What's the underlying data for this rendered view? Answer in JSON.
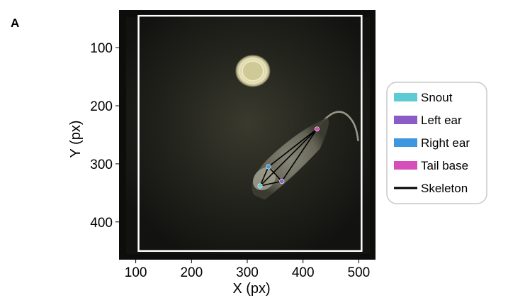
{
  "panel_label": "A",
  "chart_data": {
    "type": "scatter",
    "title": "",
    "xlabel": "X (px)",
    "ylabel": "Y (px)",
    "xlim": [
      70,
      530
    ],
    "ylim": [
      465,
      35
    ],
    "x_ticks": [
      100,
      200,
      300,
      400,
      500
    ],
    "y_ticks": [
      100,
      200,
      300,
      400
    ],
    "x_tick_labels": [
      "100",
      "200",
      "300",
      "400",
      "500"
    ],
    "y_tick_labels": [
      "100",
      "200",
      "300",
      "400"
    ],
    "grid": false,
    "background": "video frame of a mouse in a dark square arena with a water dish",
    "arena_border": {
      "x": [
        105,
        505
      ],
      "y": [
        45,
        450
      ]
    },
    "dish_center": [
      310,
      140
    ],
    "keypoints": [
      {
        "name": "Snout",
        "x": 323,
        "y": 338,
        "color": "#5ccbd4"
      },
      {
        "name": "Left ear",
        "x": 362,
        "y": 330,
        "color": "#8a5cc8"
      },
      {
        "name": "Right ear",
        "x": 338,
        "y": 305,
        "color": "#3d96e0"
      },
      {
        "name": "Tail base",
        "x": 425,
        "y": 240,
        "color": "#d64fb8"
      }
    ],
    "skeleton_edges": [
      [
        0,
        1
      ],
      [
        0,
        2
      ],
      [
        1,
        2
      ],
      [
        0,
        3
      ],
      [
        1,
        3
      ],
      [
        2,
        3
      ]
    ],
    "legend": {
      "position": "right",
      "entries": [
        {
          "label": "Snout",
          "color": "#5ccbd4",
          "marker": "patch"
        },
        {
          "label": "Left ear",
          "color": "#8a5cc8",
          "marker": "patch"
        },
        {
          "label": "Right ear",
          "color": "#3d96e0",
          "marker": "patch"
        },
        {
          "label": "Tail base",
          "color": "#d64fb8",
          "marker": "patch"
        },
        {
          "label": "Skeleton",
          "color": "#000000",
          "marker": "line"
        }
      ]
    }
  }
}
